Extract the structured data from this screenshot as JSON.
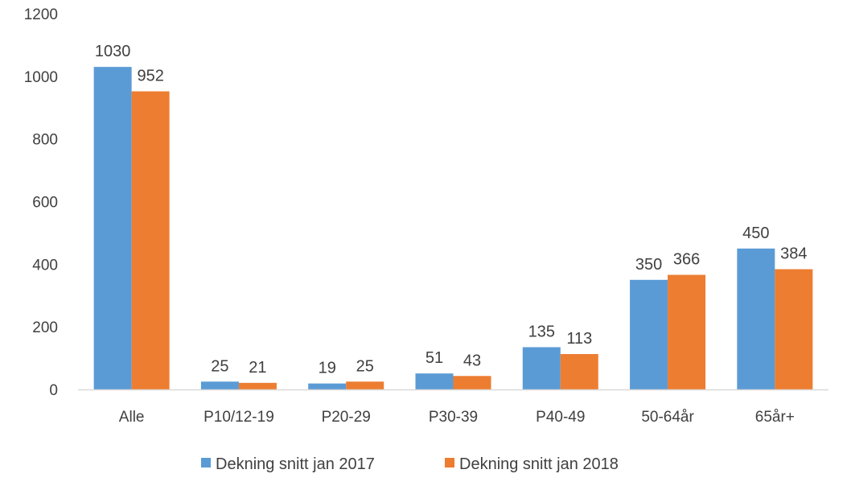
{
  "chart_data": {
    "type": "bar",
    "categories": [
      "Alle",
      "P10/12-19",
      "P20-29",
      "P30-39",
      "P40-49",
      "50-64år",
      "65år+"
    ],
    "series": [
      {
        "name": "Dekning snitt jan 2017",
        "color": "#5b9bd5",
        "values": [
          1030,
          25,
          19,
          51,
          135,
          350,
          450
        ]
      },
      {
        "name": "Dekning snitt jan 2018",
        "color": "#ed7d31",
        "values": [
          952,
          21,
          25,
          43,
          113,
          366,
          384
        ]
      }
    ],
    "ylim": [
      0,
      1200
    ],
    "yticks": [
      0,
      200,
      400,
      600,
      800,
      1000,
      1200
    ],
    "data_labels": true,
    "grid": false,
    "legend_position": "bottom",
    "axis_line_color": "#d9d9d9"
  }
}
